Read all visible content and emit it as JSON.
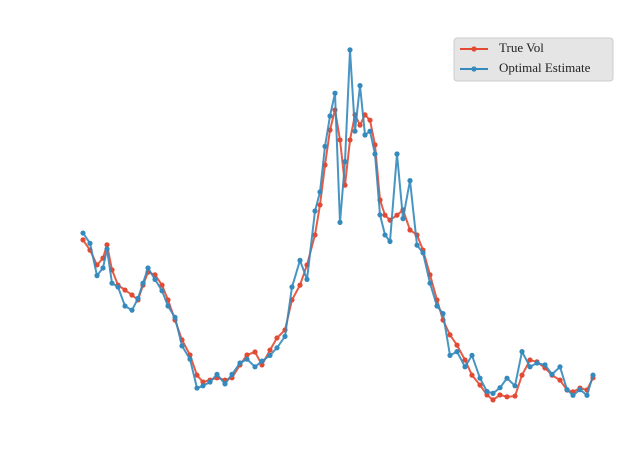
{
  "chart_data": {
    "type": "line",
    "axes_visible": false,
    "legend": "upper right",
    "xlim": [
      0,
      521
    ],
    "ylim": [
      0,
      100
    ],
    "series": [
      {
        "name": "True Vol",
        "color": "#E24A33",
        "x": [
          4,
          11,
          18,
          24,
          28,
          33,
          39,
          46,
          53,
          59,
          64,
          69,
          76,
          83,
          89,
          96,
          103,
          111,
          118,
          124,
          131,
          138,
          146,
          153,
          161,
          168,
          176,
          183,
          191,
          198,
          206,
          213,
          221,
          228,
          236,
          241,
          246,
          251,
          256,
          261,
          266,
          271,
          276,
          281,
          286,
          291,
          296,
          301,
          306,
          311,
          318,
          324,
          331,
          338,
          344,
          351,
          358,
          364,
          371,
          378,
          386,
          393,
          401,
          408,
          414,
          421,
          428,
          436,
          443,
          451,
          458,
          466,
          473,
          481,
          488,
          494,
          501,
          508,
          514
        ],
        "values": [
          47.4,
          44.7,
          40.8,
          42.6,
          46.1,
          39.5,
          35.5,
          34.2,
          32.9,
          31.6,
          35.5,
          38.9,
          38.2,
          35.5,
          31.6,
          26.3,
          21.1,
          17.1,
          11.8,
          10.0,
          10.5,
          11.1,
          10.5,
          11.1,
          14.5,
          17.1,
          17.9,
          14.5,
          18.4,
          21.6,
          23.7,
          31.6,
          35.5,
          40.8,
          48.7,
          56.6,
          67.1,
          76.3,
          81.6,
          73.7,
          61.8,
          73.7,
          80.3,
          77.6,
          80.3,
          78.9,
          72.4,
          57.9,
          53.9,
          52.6,
          53.9,
          55.3,
          50.0,
          48.7,
          44.7,
          38.2,
          31.6,
          26.3,
          22.4,
          19.7,
          15.8,
          11.8,
          9.2,
          6.6,
          5.3,
          6.6,
          6.1,
          6.3,
          11.8,
          15.8,
          15.3,
          13.7,
          11.8,
          10.5,
          7.9,
          7.4,
          8.4,
          7.9,
          11.1
        ]
      },
      {
        "name": "Optimal Estimate",
        "color": "#348ABD",
        "x": [
          4,
          11,
          18,
          24,
          28,
          33,
          39,
          46,
          53,
          59,
          64,
          69,
          76,
          83,
          89,
          96,
          103,
          111,
          118,
          124,
          131,
          138,
          146,
          153,
          161,
          168,
          176,
          183,
          191,
          198,
          206,
          213,
          221,
          228,
          236,
          241,
          246,
          251,
          256,
          261,
          266,
          271,
          276,
          281,
          286,
          291,
          296,
          301,
          306,
          311,
          318,
          324,
          331,
          338,
          344,
          351,
          358,
          364,
          371,
          378,
          386,
          393,
          401,
          408,
          414,
          421,
          428,
          436,
          443,
          451,
          458,
          466,
          473,
          481,
          488,
          494,
          501,
          508,
          514
        ],
        "values": [
          49.2,
          46.5,
          38.0,
          40.0,
          45.0,
          36.0,
          35.0,
          30.0,
          28.9,
          32.0,
          36.0,
          40.0,
          37.0,
          34.0,
          30.0,
          27.0,
          19.5,
          16.0,
          8.4,
          9.0,
          10.0,
          12.0,
          9.5,
          12.0,
          15.0,
          16.0,
          14.0,
          15.5,
          17.0,
          19.0,
          22.0,
          35.0,
          42.0,
          37.0,
          55.0,
          60.0,
          72.0,
          80.0,
          86.0,
          52.0,
          68.0,
          97.4,
          76.0,
          88.0,
          75.0,
          76.0,
          70.0,
          54.0,
          48.7,
          47.0,
          70.0,
          53.0,
          63.0,
          46.0,
          44.0,
          36.0,
          30.0,
          28.0,
          17.0,
          18.0,
          14.0,
          17.0,
          11.0,
          7.5,
          7.0,
          8.5,
          11.0,
          9.0,
          18.0,
          14.0,
          15.0,
          14.5,
          12.0,
          14.0,
          8.0,
          6.5,
          8.0,
          6.5,
          11.8
        ]
      }
    ]
  }
}
